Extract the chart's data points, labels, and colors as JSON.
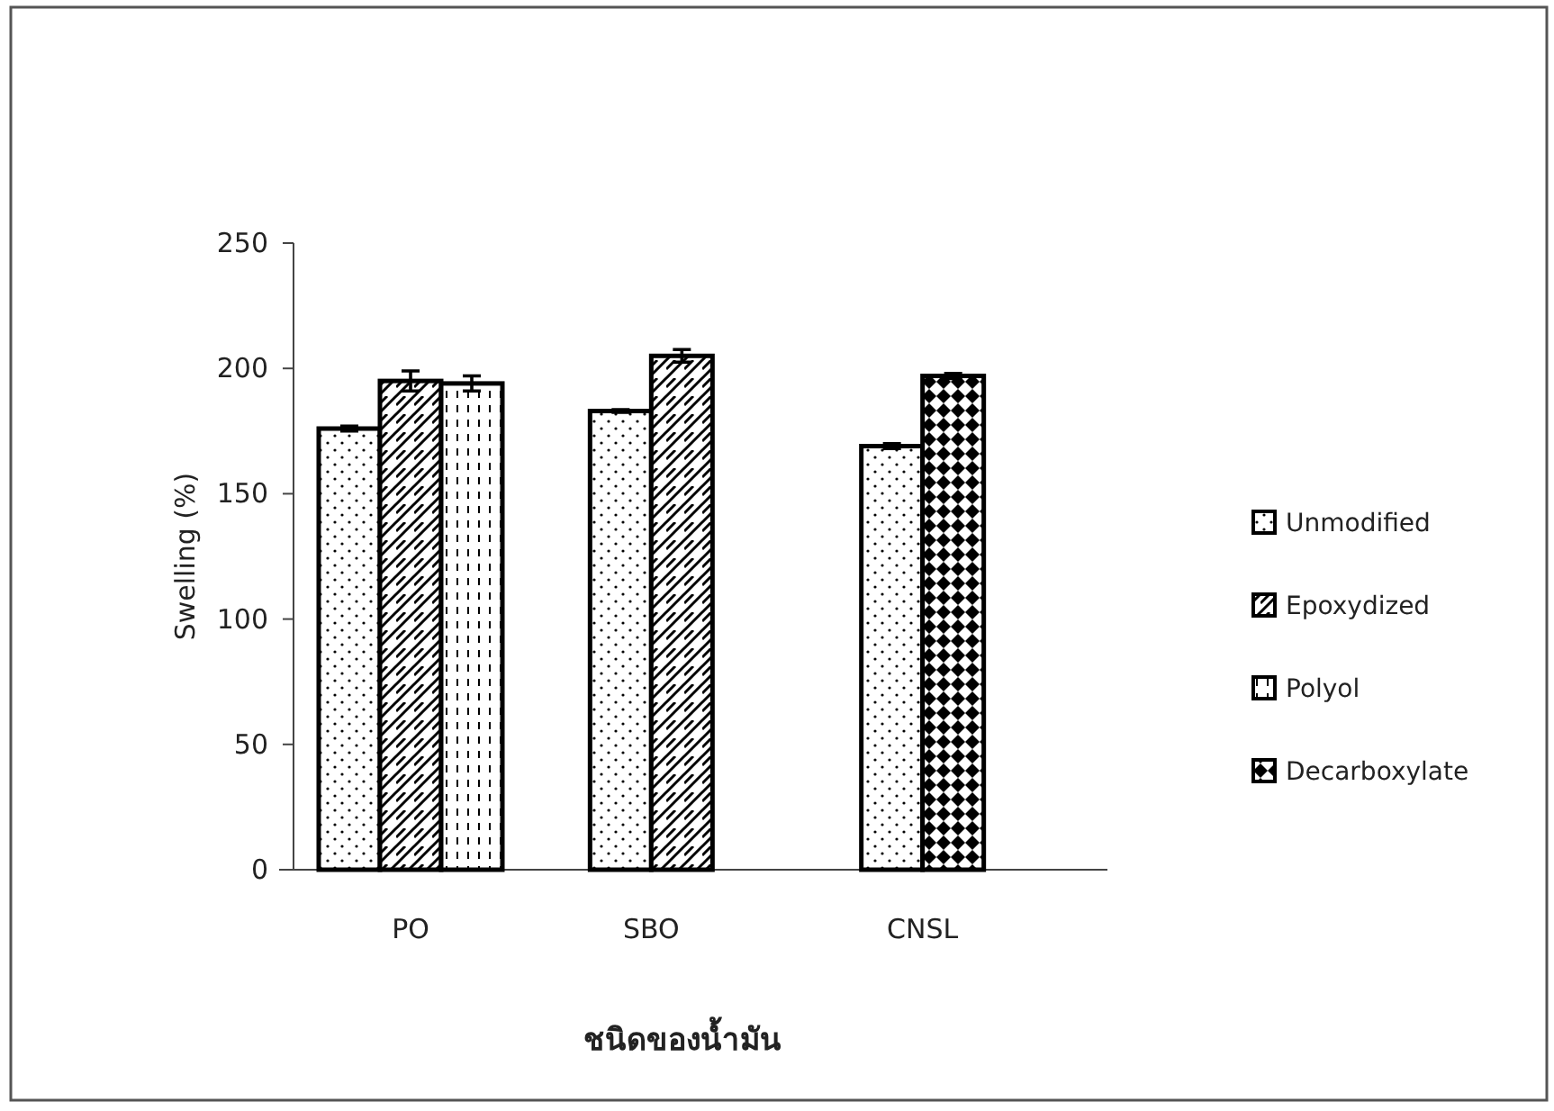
{
  "chart_data": {
    "type": "bar",
    "xlabel": "ชนิดของน้ำมัน",
    "ylabel": "Swelling (%)",
    "categories": [
      "PO",
      "SBO",
      "CNSL"
    ],
    "series": [
      {
        "name": "Unmodified",
        "color": "#000000",
        "values": [
          176,
          183,
          169
        ],
        "errors": [
          1,
          0.5,
          1
        ]
      },
      {
        "name": "Epoxydized",
        "color": "#000000",
        "values": [
          195,
          205,
          null
        ],
        "errors": [
          4,
          2.5,
          null
        ]
      },
      {
        "name": "Polyol",
        "color": "#000000",
        "values": [
          194,
          null,
          null
        ],
        "errors": [
          3,
          null,
          null
        ]
      },
      {
        "name": "Decarboxylate",
        "color": "#000000",
        "values": [
          null,
          null,
          197
        ],
        "errors": [
          null,
          null,
          1
        ]
      }
    ],
    "ylim": [
      0,
      250
    ],
    "yticks": [
      0,
      50,
      100,
      150,
      200,
      250
    ],
    "grid": false,
    "legend": "right"
  }
}
